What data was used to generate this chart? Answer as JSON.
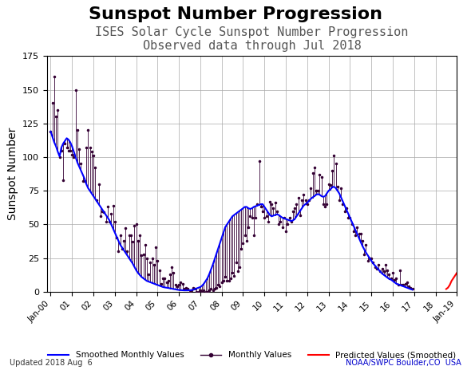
{
  "title": "Sunspot Number Progression",
  "subtitle1": "ISES Solar Cycle Sunspot Number Progression",
  "subtitle2": "Observed data through Jul 2018",
  "ylabel": "Sunspot Number",
  "footer_left": "Updated 2018 Aug  6",
  "footer_right": "NOAA/SWPC Boulder,CO  USA",
  "footer_right_color": "#0000cc",
  "title_fontsize": 16,
  "subtitle1_fontsize": 11,
  "subtitle2_fontsize": 9,
  "ylabel_fontsize": 10,
  "ylim": [
    0,
    175
  ],
  "yticks": [
    0,
    25,
    50,
    75,
    100,
    125,
    150,
    175
  ],
  "smoothed_color": "#0000ff",
  "monthly_color": "#330033",
  "predicted_color": "#ff0000",
  "bg_color": "#ffffff",
  "smoothed_monthly": [
    119.0,
    115.0,
    111.0,
    108.0,
    104.0,
    100.5,
    107.0,
    110.0,
    112.0,
    114.0,
    113.0,
    111.0,
    108.0,
    104.0,
    100.0,
    96.0,
    93.0,
    90.0,
    87.0,
    84.0,
    80.0,
    77.0,
    75.0,
    73.0,
    71.0,
    69.0,
    67.0,
    65.0,
    63.0,
    61.0,
    59.0,
    57.0,
    55.0,
    53.0,
    50.0,
    47.0,
    44.0,
    41.0,
    38.0,
    35.0,
    33.0,
    31.0,
    29.0,
    27.0,
    25.0,
    23.0,
    21.0,
    18.5,
    16.0,
    14.0,
    12.5,
    11.0,
    10.0,
    9.0,
    8.0,
    7.5,
    7.0,
    6.5,
    6.0,
    5.5,
    5.0,
    4.5,
    4.0,
    3.5,
    3.2,
    3.0,
    2.8,
    2.5,
    2.3,
    2.0,
    1.8,
    1.5,
    1.3,
    1.2,
    1.1,
    1.0,
    1.0,
    1.0,
    1.1,
    1.2,
    1.5,
    2.0,
    2.5,
    3.0,
    3.5,
    4.5,
    6.0,
    8.0,
    10.0,
    13.0,
    16.5,
    20.0,
    24.0,
    28.0,
    32.0,
    36.0,
    40.0,
    44.0,
    48.0,
    50.0,
    52.0,
    54.0,
    56.0,
    57.0,
    58.0,
    59.0,
    60.0,
    61.0,
    62.0,
    63.0,
    63.0,
    62.0,
    61.5,
    62.0,
    63.0,
    63.5,
    64.0,
    64.5,
    65.0,
    65.0,
    63.0,
    61.0,
    59.0,
    57.0,
    56.0,
    56.5,
    57.0,
    57.5,
    57.0,
    56.0,
    55.0,
    54.5,
    54.0,
    53.5,
    53.0,
    52.5,
    53.0,
    54.0,
    56.0,
    58.0,
    60.0,
    62.0,
    64.0,
    65.0,
    66.0,
    67.5,
    69.0,
    70.0,
    71.0,
    72.0,
    72.5,
    72.0,
    71.0,
    70.5,
    71.0,
    73.0,
    75.0,
    76.0,
    77.5,
    78.0,
    77.0,
    75.0,
    73.0,
    70.0,
    67.0,
    64.0,
    61.0,
    58.0,
    55.0,
    52.0,
    49.0,
    46.0,
    43.0,
    40.0,
    37.0,
    34.0,
    31.5,
    29.0,
    27.0,
    25.0,
    23.0,
    21.0,
    19.5,
    18.0,
    16.5,
    15.0,
    13.5,
    12.5,
    11.5,
    10.5,
    9.5,
    9.0,
    8.0,
    7.0,
    6.0,
    5.5,
    5.0,
    4.5,
    4.0,
    3.5,
    3.0,
    2.5,
    2.0,
    1.5
  ],
  "monthly_values": [
    119.0,
    140.0,
    160.0,
    130.0,
    135.0,
    100.0,
    105.0,
    83.0,
    110.0,
    107.0,
    105.0,
    105.0,
    102.0,
    100.0,
    150.0,
    120.0,
    106.0,
    95.0,
    82.0,
    82.0,
    107.0,
    120.0,
    107.0,
    104.0,
    101.0,
    92.0,
    68.0,
    80.0,
    56.0,
    60.0,
    59.0,
    52.0,
    63.0,
    52.0,
    58.0,
    64.0,
    52.0,
    40.0,
    30.0,
    42.0,
    32.0,
    38.0,
    47.0,
    30.0,
    42.0,
    42.0,
    37.0,
    49.0,
    50.0,
    38.0,
    42.0,
    27.0,
    28.0,
    35.0,
    25.0,
    13.0,
    22.0,
    25.0,
    20.0,
    33.0,
    23.0,
    16.0,
    6.0,
    10.0,
    10.0,
    7.0,
    8.0,
    13.0,
    18.0,
    14.0,
    5.0,
    4.0,
    5.0,
    7.0,
    6.0,
    2.0,
    3.0,
    2.0,
    0.0,
    1.0,
    3.0,
    2.0,
    0.0,
    0.0,
    1.0,
    0.0,
    1.0,
    0.0,
    0.0,
    1.0,
    2.0,
    1.0,
    2.0,
    3.0,
    5.0,
    4.0,
    7.0,
    8.0,
    11.0,
    8.0,
    8.0,
    10.0,
    14.0,
    12.0,
    22.0,
    15.0,
    18.0,
    32.0,
    36.0,
    42.0,
    38.0,
    48.0,
    56.0,
    55.0,
    42.0,
    55.0,
    65.0,
    97.0,
    63.0,
    60.0,
    55.0,
    56.0,
    52.0,
    67.0,
    65.0,
    62.0,
    66.0,
    60.0,
    50.0,
    52.0,
    48.0,
    55.0,
    45.0,
    50.0,
    55.0,
    52.0,
    60.0,
    62.0,
    65.0,
    70.0,
    57.0,
    68.0,
    72.0,
    68.0,
    65.0,
    68.0,
    77.0,
    88.0,
    92.0,
    75.0,
    75.0,
    87.0,
    85.0,
    65.0,
    63.0,
    65.0,
    80.0,
    79.0,
    90.0,
    101.0,
    95.0,
    78.0,
    68.0,
    77.0,
    65.0,
    60.0,
    62.0,
    55.0,
    55.0,
    50.0,
    45.0,
    42.0,
    48.0,
    43.0,
    43.0,
    38.0,
    28.0,
    35.0,
    23.0,
    25.0,
    25.0,
    22.0,
    18.0,
    17.0,
    20.0,
    15.0,
    17.0,
    15.0,
    20.0,
    16.0,
    13.0,
    10.0,
    14.0,
    9.0,
    10.0,
    5.0,
    16.0,
    5.0,
    5.0,
    6.0,
    7.0,
    4.0,
    3.0,
    2.0
  ],
  "predicted_start_index": 222,
  "predicted_values": [
    2.0,
    3.0,
    5.0,
    8.0,
    10.0,
    12.0,
    14.0
  ],
  "x_tick_labels": [
    "Jan-00",
    "01",
    "02",
    "03",
    "04",
    "05",
    "06",
    "07",
    "08",
    "09",
    "10",
    "11",
    "12",
    "13",
    "14",
    "15",
    "16",
    "17",
    "18",
    "Jan-19"
  ],
  "x_tick_positions": [
    0,
    12,
    24,
    36,
    48,
    60,
    72,
    84,
    96,
    108,
    120,
    132,
    144,
    156,
    168,
    180,
    192,
    204,
    216,
    228
  ]
}
